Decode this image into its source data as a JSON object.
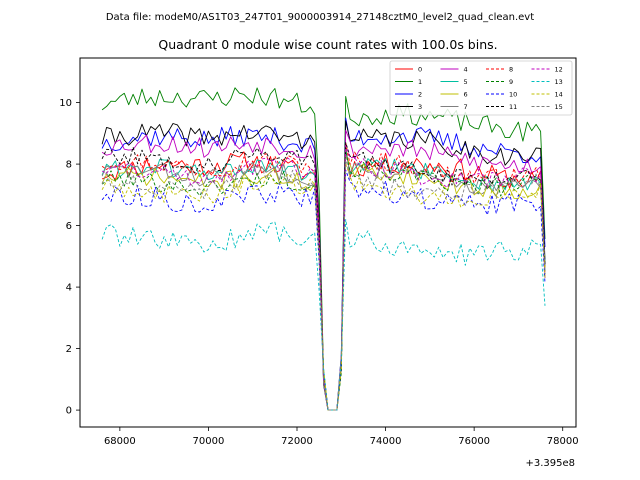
{
  "figure": {
    "suptitle": "Data file: modeM0/AS1T03_247T01_9000003914_27148cztM0_level2_quad_clean.evt"
  },
  "chart_data": {
    "type": "line",
    "title": "Quadrant 0 module wise count rates with 100.0s bins.",
    "xlabel": "",
    "ylabel": "",
    "x_offset_label": "+3.395e8",
    "x_offset": 339500000,
    "xlim": [
      67100,
      78300
    ],
    "ylim": [
      -0.55,
      11.45
    ],
    "xticks": [
      68000,
      70000,
      72000,
      74000,
      76000,
      78000
    ],
    "xtick_labels": [
      "68000",
      "70000",
      "72000",
      "74000",
      "76000",
      "78000"
    ],
    "yticks": [
      0,
      2,
      4,
      6,
      8,
      10
    ],
    "ytick_labels": [
      "0",
      "2",
      "4",
      "6",
      "8",
      "10"
    ],
    "bin_size_s": 100,
    "x_start": 67600,
    "x_end": 77600,
    "gap_x": [
      72700,
      72800,
      72900
    ],
    "grid": false,
    "legend_position": "top-right",
    "legend_columns": 4,
    "series": [
      {
        "name": "0",
        "color": "#ff0000",
        "dash": "solid",
        "level1": 7.7,
        "level2": 7.8,
        "noise": 0.35,
        "seed": 11
      },
      {
        "name": "1",
        "color": "#008000",
        "dash": "solid",
        "level1": 9.9,
        "level2": 9.4,
        "noise": 0.35,
        "seed": 23
      },
      {
        "name": "2",
        "color": "#0000ff",
        "dash": "solid",
        "level1": 8.6,
        "level2": 8.7,
        "noise": 0.35,
        "seed": 37
      },
      {
        "name": "3",
        "color": "#000000",
        "dash": "solid",
        "level1": 8.7,
        "level2": 8.6,
        "noise": 0.35,
        "seed": 41
      },
      {
        "name": "4",
        "color": "#bf00bf",
        "dash": "solid",
        "level1": 8.4,
        "level2": 8.3,
        "noise": 0.35,
        "seed": 53
      },
      {
        "name": "5",
        "color": "#00bfa0",
        "dash": "solid",
        "level1": 7.6,
        "level2": 7.7,
        "noise": 0.3,
        "seed": 61
      },
      {
        "name": "6",
        "color": "#bfbf00",
        "dash": "solid",
        "level1": 7.3,
        "level2": 7.5,
        "noise": 0.3,
        "seed": 71
      },
      {
        "name": "7",
        "color": "#808080",
        "dash": "solid",
        "level1": 7.5,
        "level2": 7.6,
        "noise": 0.3,
        "seed": 83
      },
      {
        "name": "8",
        "color": "#ff0000",
        "dash": "dashed",
        "level1": 7.8,
        "level2": 7.9,
        "noise": 0.3,
        "seed": 97
      },
      {
        "name": "9",
        "color": "#008000",
        "dash": "dashed",
        "level1": 7.2,
        "level2": 7.6,
        "noise": 0.3,
        "seed": 101
      },
      {
        "name": "10",
        "color": "#0000ff",
        "dash": "dashed",
        "level1": 6.7,
        "level2": 7.0,
        "noise": 0.35,
        "seed": 113
      },
      {
        "name": "11",
        "color": "#000000",
        "dash": "dashed",
        "level1": 8.0,
        "level2": 7.9,
        "noise": 0.3,
        "seed": 127
      },
      {
        "name": "12",
        "color": "#bf00bf",
        "dash": "dashed",
        "level1": 7.6,
        "level2": 7.8,
        "noise": 0.3,
        "seed": 131
      },
      {
        "name": "13",
        "color": "#00bfbf",
        "dash": "dashed",
        "level1": 5.4,
        "level2": 5.4,
        "noise": 0.35,
        "seed": 139
      },
      {
        "name": "14",
        "color": "#bfbf00",
        "dash": "dashed",
        "level1": 7.0,
        "level2": 7.2,
        "noise": 0.3,
        "seed": 149
      },
      {
        "name": "15",
        "color": "#808080",
        "dash": "dashed",
        "level1": 7.2,
        "level2": 7.4,
        "noise": 0.3,
        "seed": 151
      }
    ]
  }
}
